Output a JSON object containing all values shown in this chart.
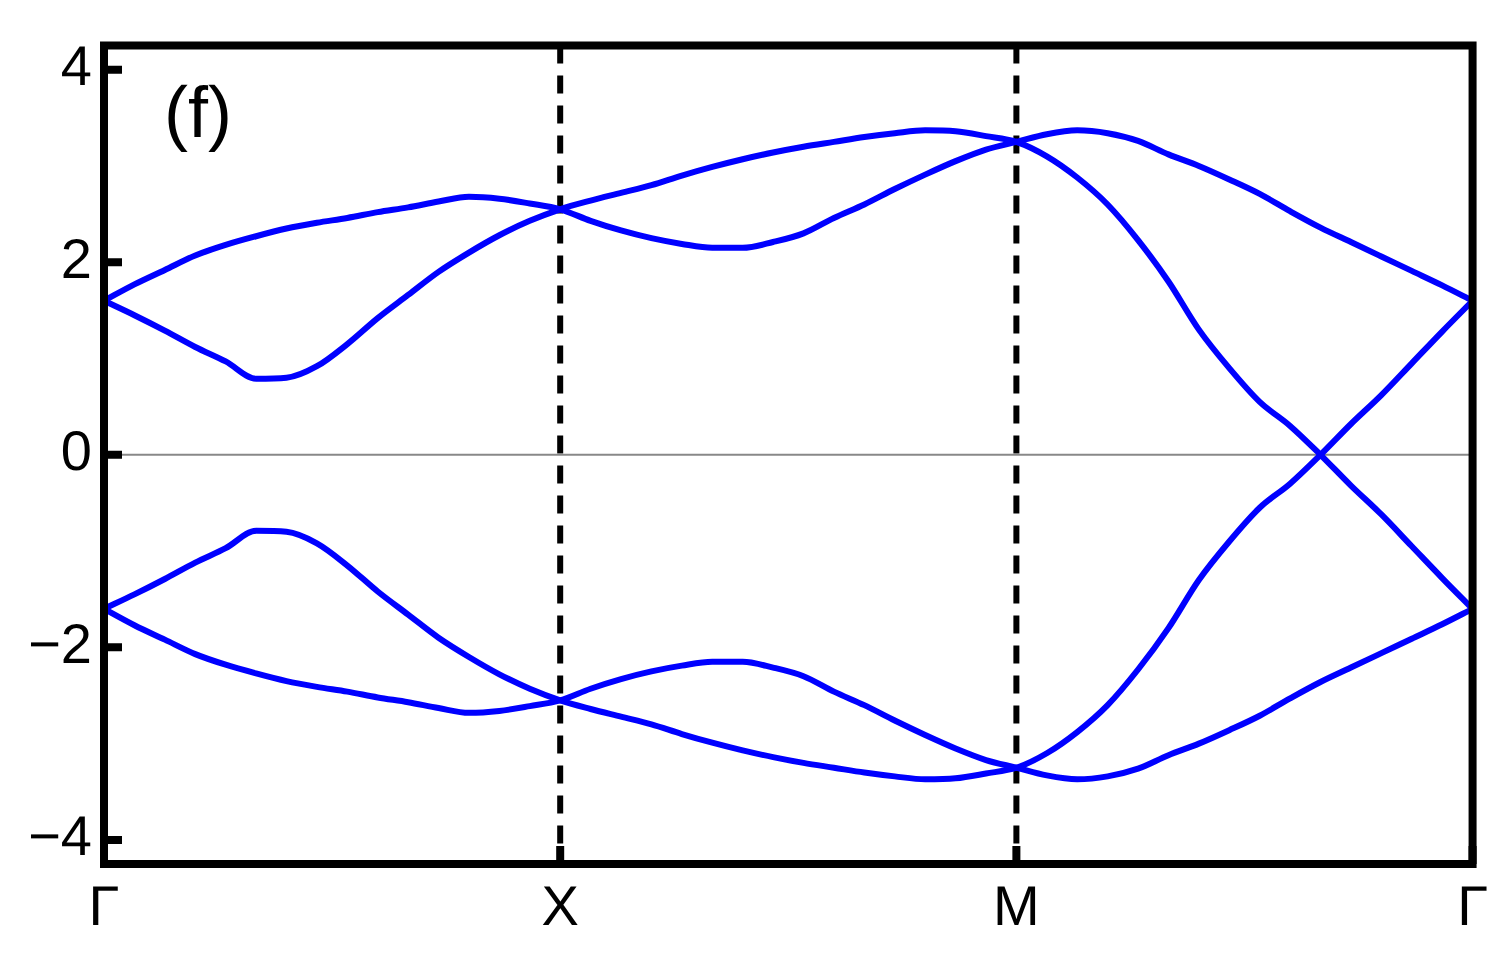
{
  "chart_data": {
    "type": "line",
    "annotations": [
      "(f)"
    ],
    "categories": [
      "Γ",
      null,
      null,
      null,
      null,
      null,
      null,
      null,
      null,
      null,
      null,
      null,
      null,
      null,
      null,
      "X",
      null,
      null,
      null,
      null,
      null,
      null,
      null,
      null,
      null,
      null,
      null,
      null,
      null,
      null,
      "M",
      null,
      null,
      null,
      null,
      null,
      null,
      null,
      null,
      null,
      null,
      null,
      null,
      null,
      null,
      "Γ"
    ],
    "ylim": [
      -4.25,
      4.25
    ],
    "yticks": [
      -4,
      -2,
      0,
      2,
      4
    ],
    "grid": false,
    "legend": false,
    "marker": "none",
    "line_style": "solid",
    "ref_lines": [
      {
        "axis": "x",
        "value": "X",
        "color": "#000000",
        "line_style": "dashed"
      },
      {
        "axis": "x",
        "value": "M",
        "color": "#000000",
        "line_style": "dashed"
      },
      {
        "axis": "y",
        "value": 0,
        "color": "#888888",
        "line_style": "solid"
      }
    ],
    "series": [
      {
        "color": "#0000ff",
        "values": [
          1.6,
          1.77,
          1.92,
          2.07,
          2.18,
          2.27,
          2.35,
          2.41,
          2.46,
          2.52,
          2.57,
          2.63,
          2.68,
          2.66,
          2.61,
          2.55,
          2.43,
          2.33,
          2.25,
          2.19,
          2.15,
          2.15,
          2.21,
          2.3,
          2.46,
          2.6,
          2.76,
          2.91,
          3.05,
          3.17,
          3.25,
          3.33,
          3.37,
          3.34,
          3.26,
          3.12,
          3.0,
          2.86,
          2.71,
          2.53,
          2.36,
          2.21,
          2.06,
          1.91,
          1.76,
          1.6
        ]
      },
      {
        "color": "#0000ff",
        "values": [
          1.6,
          1.45,
          1.29,
          1.12,
          0.97,
          0.79,
          0.8,
          0.92,
          1.15,
          1.42,
          1.66,
          1.9,
          2.1,
          2.28,
          2.43,
          2.55,
          2.64,
          2.72,
          2.8,
          2.9,
          2.99,
          3.07,
          3.14,
          3.2,
          3.25,
          3.3,
          3.34,
          3.37,
          3.36,
          3.31,
          3.25,
          3.1,
          2.88,
          2.6,
          2.23,
          1.8,
          1.3,
          0.9,
          0.55,
          0.3,
          0,
          -0.32,
          -0.62,
          -0.95,
          -1.28,
          -1.6
        ]
      },
      {
        "color": "#0000ff",
        "values": [
          -1.6,
          -1.77,
          -1.92,
          -2.07,
          -2.18,
          -2.27,
          -2.35,
          -2.41,
          -2.46,
          -2.52,
          -2.57,
          -2.63,
          -2.68,
          -2.66,
          -2.61,
          -2.55,
          -2.43,
          -2.33,
          -2.25,
          -2.19,
          -2.15,
          -2.15,
          -2.21,
          -2.3,
          -2.46,
          -2.6,
          -2.76,
          -2.91,
          -3.05,
          -3.17,
          -3.25,
          -3.33,
          -3.37,
          -3.34,
          -3.26,
          -3.12,
          -3.0,
          -2.86,
          -2.71,
          -2.53,
          -2.36,
          -2.21,
          -2.06,
          -1.91,
          -1.76,
          -1.6
        ]
      },
      {
        "color": "#0000ff",
        "values": [
          -1.6,
          -1.45,
          -1.29,
          -1.12,
          -0.97,
          -0.79,
          -0.8,
          -0.92,
          -1.15,
          -1.42,
          -1.66,
          -1.9,
          -2.1,
          -2.28,
          -2.43,
          -2.55,
          -2.64,
          -2.72,
          -2.8,
          -2.9,
          -2.99,
          -3.07,
          -3.14,
          -3.2,
          -3.25,
          -3.3,
          -3.34,
          -3.37,
          -3.36,
          -3.31,
          -3.25,
          -3.1,
          -2.88,
          -2.6,
          -2.23,
          -1.8,
          -1.3,
          -0.9,
          -0.55,
          -0.3,
          0,
          0.32,
          0.62,
          0.95,
          1.28,
          1.6
        ]
      }
    ]
  }
}
